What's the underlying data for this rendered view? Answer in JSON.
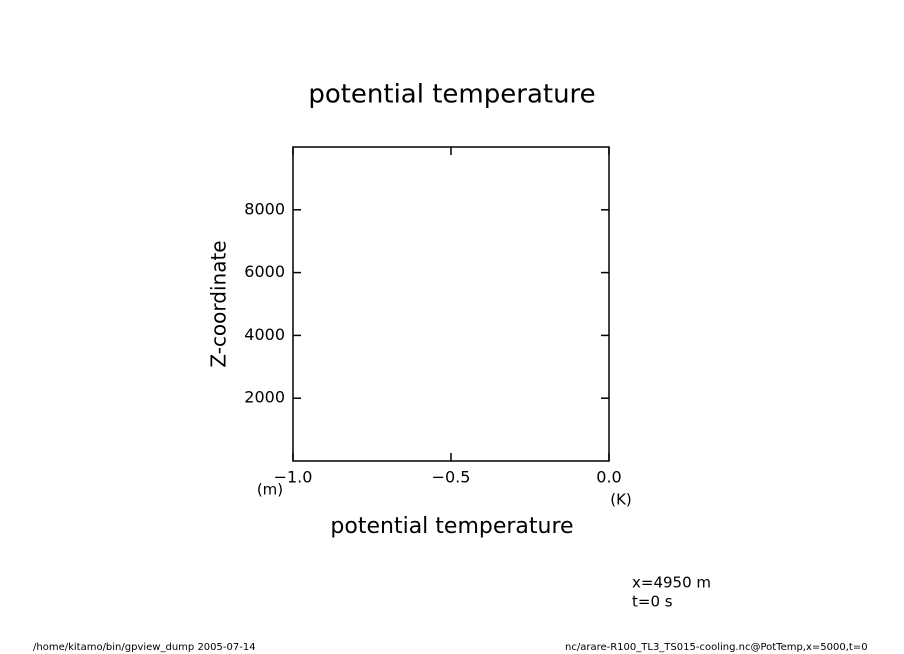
{
  "chart_data": {
    "type": "line",
    "title": "potential temperature",
    "xlabel": "potential temperature",
    "ylabel": "Z-coordinate",
    "xunit": "(K)",
    "yunit": "(m)",
    "series": [],
    "xlim": [
      -1,
      0
    ],
    "xticks": [
      {
        "value": -1,
        "label": "−1.0"
      },
      {
        "value": -0.5,
        "label": "−0.5"
      },
      {
        "value": 0,
        "label": "0.0"
      }
    ],
    "ylim": [
      0,
      10000
    ],
    "yticks": [
      2000,
      4000,
      6000,
      8000
    ],
    "annotations": [
      "x=4950 m",
      "t=0 s"
    ],
    "footer_left": "/home/kitamo/bin/gpview_dump  2005-07-14",
    "footer_right": "nc/arare-R100_TL3_TS015-cooling.nc@PotTemp,x=5000,t=0"
  }
}
